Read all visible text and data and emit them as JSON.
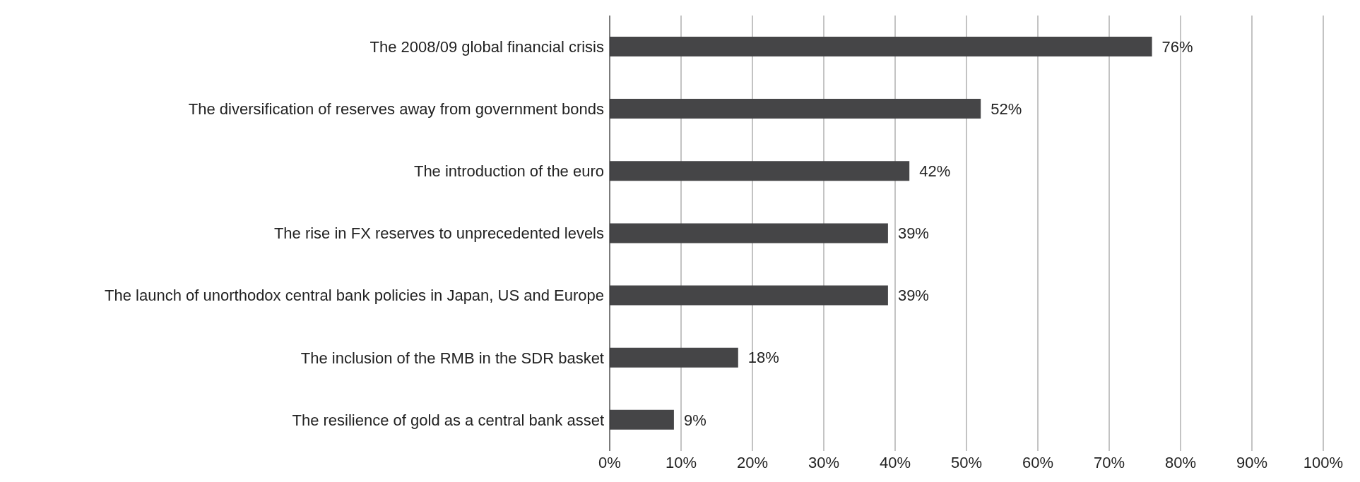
{
  "chart_data": {
    "type": "bar",
    "orientation": "horizontal",
    "categories": [
      "The 2008/09 global financial crisis",
      "The diversification of reserves away from government bonds",
      "The introduction of the euro",
      "The rise in FX reserves to unprecedented levels",
      "The launch of unorthodox central bank policies in Japan, US and Europe",
      "The inclusion of the RMB in the SDR basket",
      "The resilience of gold as a central bank asset"
    ],
    "values": [
      76,
      52,
      42,
      39,
      39,
      18,
      9
    ],
    "value_labels": [
      "76%",
      "52%",
      "42%",
      "39%",
      "39%",
      "18%",
      "9%"
    ],
    "color": "#454547",
    "xlim": [
      0,
      100
    ],
    "xticks": [
      {
        "value": 0,
        "label": "0%"
      },
      {
        "value": 10,
        "label": "10%"
      },
      {
        "value": 20,
        "label": "20%"
      },
      {
        "value": 30,
        "label": "30%"
      },
      {
        "value": 40,
        "label": "40%"
      },
      {
        "value": 50,
        "label": "50%"
      },
      {
        "value": 60,
        "label": "60%"
      },
      {
        "value": 70,
        "label": "70%"
      },
      {
        "value": 80,
        "label": "80%"
      },
      {
        "value": 90,
        "label": "90%"
      },
      {
        "value": 100,
        "label": "100%"
      }
    ],
    "grid": "x",
    "legend": false
  }
}
